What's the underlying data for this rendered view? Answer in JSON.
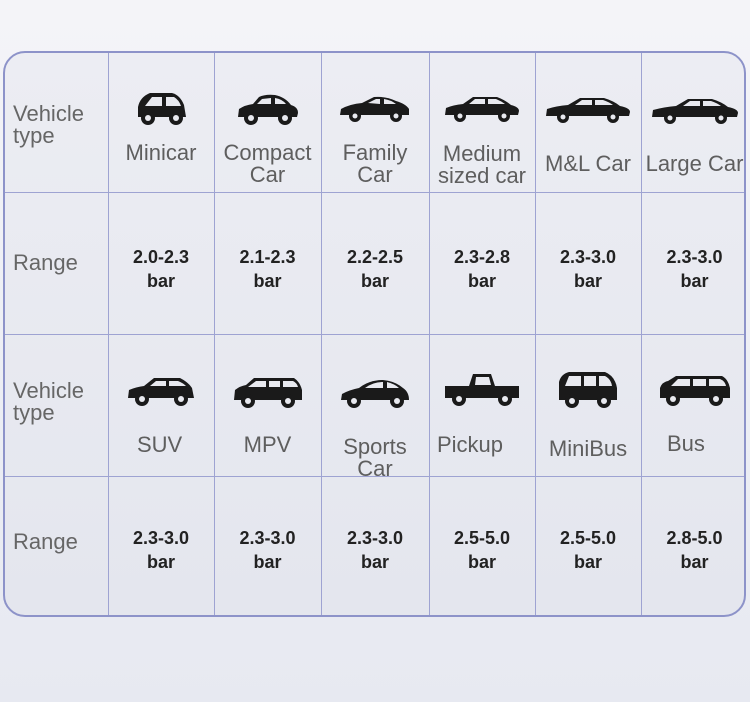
{
  "rows": [
    {
      "type_label": "Vehicle type",
      "range_label": "Range",
      "vehicles": [
        {
          "name": "Minicar",
          "icon": "minicar-icon",
          "range": "2.0-2.3",
          "unit": "bar"
        },
        {
          "name": "Compact Car",
          "icon": "compact-car-icon",
          "range": "2.1-2.3",
          "unit": "bar"
        },
        {
          "name": "Family Car",
          "icon": "family-car-icon",
          "range": "2.2-2.5",
          "unit": "bar"
        },
        {
          "name": "Medium sized car",
          "icon": "medium-car-icon",
          "range": "2.3-2.8",
          "unit": "bar"
        },
        {
          "name": "M&L Car",
          "icon": "ml-car-icon",
          "range": "2.3-3.0",
          "unit": "bar"
        },
        {
          "name": "Large Car",
          "icon": "large-car-icon",
          "range": "2.3-3.0",
          "unit": "bar"
        }
      ]
    },
    {
      "type_label": "Vehicle type",
      "range_label": "Range",
      "vehicles": [
        {
          "name": "SUV",
          "icon": "suv-icon",
          "range": "2.3-3.0",
          "unit": "bar"
        },
        {
          "name": "MPV",
          "icon": "mpv-icon",
          "range": "2.3-3.0",
          "unit": "bar"
        },
        {
          "name": "Sports Car",
          "icon": "sports-car-icon",
          "range": "2.3-3.0",
          "unit": "bar"
        },
        {
          "name": "Pickup",
          "icon": "pickup-icon",
          "range": "2.5-5.0",
          "unit": "bar"
        },
        {
          "name": "MiniBus",
          "icon": "minibus-icon",
          "range": "2.5-5.0",
          "unit": "bar"
        },
        {
          "name": "Bus",
          "icon": "bus-icon",
          "range": "2.8-5.0",
          "unit": "bar"
        }
      ]
    }
  ],
  "colors": {
    "border": "#8d93c9",
    "text": "#5e5e5e",
    "icon": "#1a1a1a"
  }
}
